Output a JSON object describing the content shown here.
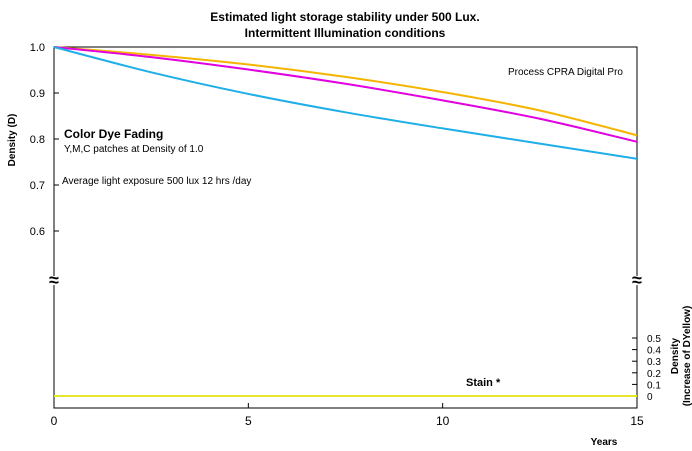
{
  "chart_data": {
    "type": "line",
    "title_line1": "Estimated light storage stability under 500 Lux.",
    "title_line2": "Intermittent Illumination conditions",
    "xlabel": "Years",
    "ylabel_left": "Density (D)",
    "ylabel_right_line1": "Density",
    "ylabel_right_line2": "(Increase of DYellow)",
    "x_ticks": [
      "0",
      "5",
      "10",
      "15"
    ],
    "y_ticks_left": [
      "1.0",
      "0.9",
      "0.8",
      "0.7",
      "0.6"
    ],
    "y_ticks_right": [
      "0.5",
      "0.4",
      "0.3",
      "0.2",
      "0.1",
      "0"
    ],
    "xlim": [
      0,
      15
    ],
    "ylim_upper": [
      0.6,
      1.0
    ],
    "ylim_lower": [
      0,
      0.5
    ],
    "axis_break_symbol": "≈",
    "annotations": {
      "process": "Process CPRA Digital Pro",
      "heading": "Color Dye Fading",
      "patches": "Y,M,C patches at Density of 1.0",
      "exposure": "Average light exposure 500 lux 12 hrs /day",
      "stain": "Stain *"
    },
    "colors": {
      "yellow_dye": "#f4b400",
      "magenta_dye": "#e000e0",
      "cyan_dye": "#1eaee8",
      "stain": "#e6e62e"
    },
    "x": [
      0,
      2.5,
      5,
      7.5,
      10,
      12.5,
      15
    ],
    "series": [
      {
        "color": "yellow_dye",
        "axis": "upper",
        "values": [
          1.0,
          0.983,
          0.962,
          0.935,
          0.902,
          0.862,
          0.808
        ]
      },
      {
        "color": "magenta_dye",
        "axis": "upper",
        "values": [
          1.0,
          0.978,
          0.951,
          0.92,
          0.884,
          0.844,
          0.794
        ]
      },
      {
        "color": "cyan_dye",
        "axis": "upper",
        "values": [
          1.0,
          0.945,
          0.898,
          0.858,
          0.823,
          0.79,
          0.757
        ]
      },
      {
        "color": "stain",
        "axis": "lower",
        "values": [
          0,
          0,
          0,
          0,
          0,
          0,
          0
        ]
      }
    ]
  }
}
